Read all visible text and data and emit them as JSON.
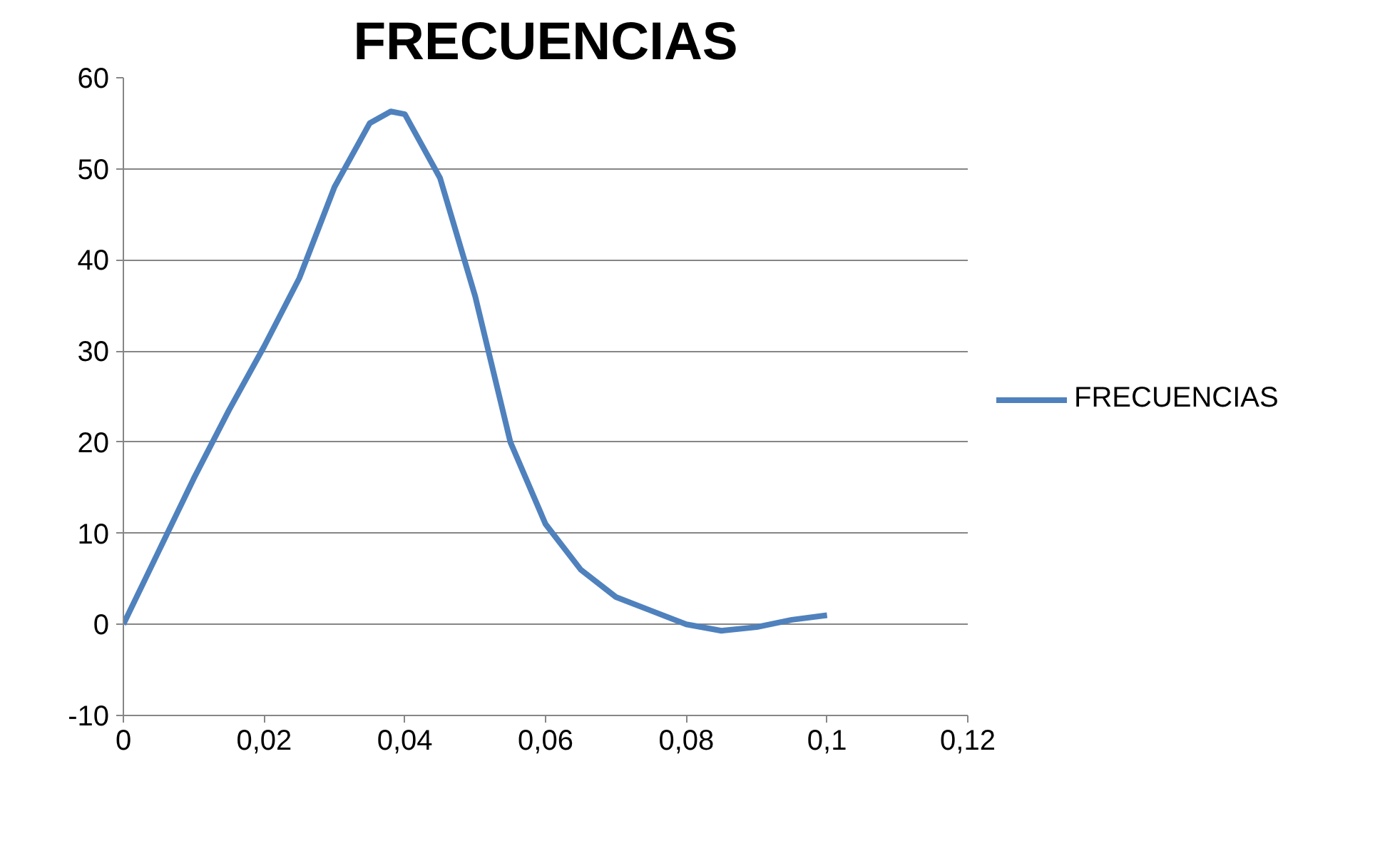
{
  "chart_data": {
    "type": "line",
    "title": "FRECUENCIAS",
    "x": [
      0,
      0.005,
      0.01,
      0.015,
      0.02,
      0.025,
      0.03,
      0.035,
      0.038,
      0.04,
      0.045,
      0.05,
      0.055,
      0.06,
      0.065,
      0.07,
      0.075,
      0.08,
      0.085,
      0.09,
      0.095,
      0.1
    ],
    "series": [
      {
        "name": "FRECUENCIAS",
        "color": "#4f81bd",
        "values": [
          0,
          8,
          16,
          23.5,
          30.5,
          38,
          48,
          55,
          56.3,
          56,
          49,
          36,
          20,
          11,
          6,
          3,
          1.5,
          0,
          -0.7,
          -0.3,
          0.5,
          1
        ]
      }
    ],
    "xlim": [
      0,
      0.12
    ],
    "ylim": [
      -10,
      60
    ],
    "xticks": [
      0,
      {
        "value": 0.02,
        "label": "0,02"
      },
      {
        "value": 0.04,
        "label": "0,04"
      },
      {
        "value": 0.06,
        "label": "0,06"
      },
      {
        "value": 0.08,
        "label": "0,08"
      },
      {
        "value": 0.1,
        "label": "0,1"
      },
      {
        "value": 0.12,
        "label": "0,12"
      }
    ],
    "yticks": [
      -10,
      0,
      10,
      20,
      30,
      40,
      50,
      60
    ],
    "grid": "y",
    "legend": "right",
    "marker": "none",
    "line_style": "solid"
  }
}
